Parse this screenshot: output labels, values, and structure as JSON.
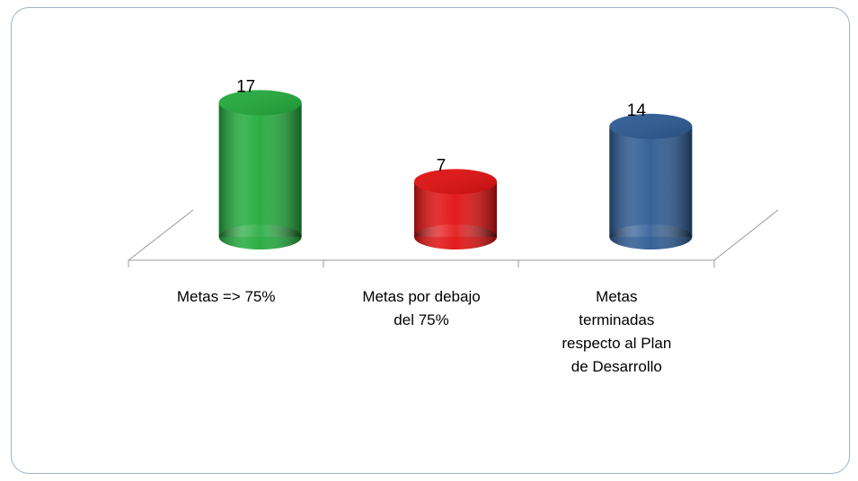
{
  "chart_data": {
    "type": "bar",
    "categories": [
      "Metas => 75%",
      "Metas por debajo del 75%",
      "Metas terminadas respecto al Plan de Desarrollo"
    ],
    "values": [
      17,
      7,
      14
    ],
    "colors": [
      "#22aa3c",
      "#e01010",
      "#2c5a93"
    ]
  }
}
